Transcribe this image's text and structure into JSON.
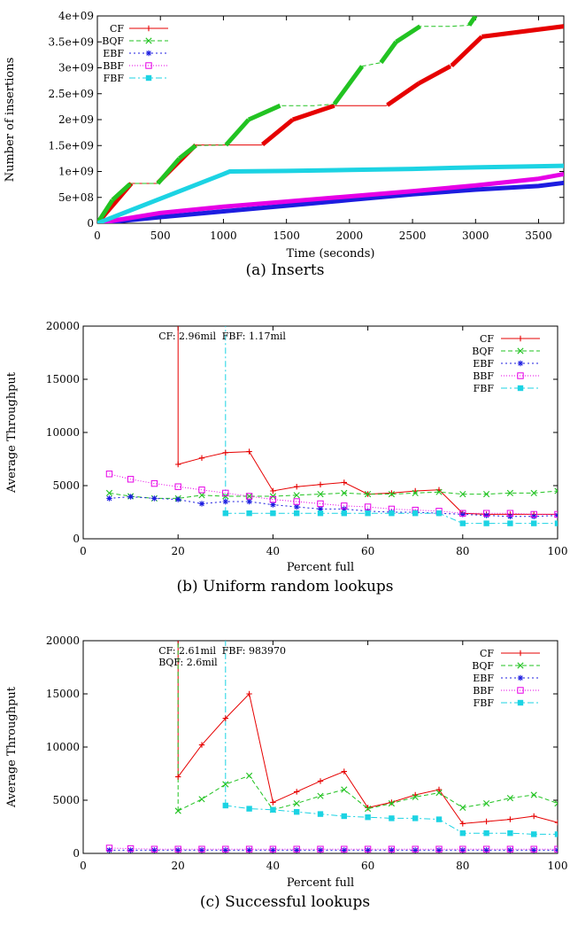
{
  "colors": {
    "CF": "#e60000",
    "BQF": "#22c322",
    "EBF": "#1d1de0",
    "BBF": "#e600e6",
    "FBF": "#1cd3e3"
  },
  "chart_data": [
    {
      "caption": "(a) Inserts",
      "type": "line",
      "xlabel": "Time (seconds)",
      "ylabel": "Number of insertions",
      "xlim": [
        0,
        3700
      ],
      "ylim": [
        0,
        4000000000
      ],
      "xticks": [
        0,
        500,
        1000,
        1500,
        2000,
        2500,
        3000,
        3500
      ],
      "yticks": [
        0,
        500000000,
        1000000000,
        1500000000,
        2000000000,
        2500000000,
        3000000000,
        3500000000,
        4000000000
      ],
      "ytick_labels": [
        "0",
        "5e+08",
        "1e+09",
        "1.5e+09",
        "2e+09",
        "2.5e+09",
        "3e+09",
        "3.5e+09",
        "4e+09"
      ],
      "legend_position": "top-left",
      "series": [
        {
          "name": "CF",
          "x": [
            0,
            270,
            470,
            480,
            780,
            1040,
            1300,
            1310,
            1550,
            1880,
            2290,
            2300,
            2550,
            2800,
            2810,
            3050,
            3700,
            3710
          ],
          "y": [
            0,
            770000000,
            770000000,
            780000000,
            1510000000,
            1510000000,
            1510000000,
            1520000000,
            2000000000,
            2270000000,
            2270000000,
            2280000000,
            2700000000,
            3030000000,
            3040000000,
            3600000000,
            3800000000,
            3900000000
          ]
        },
        {
          "name": "BQF",
          "x": [
            0,
            120,
            260,
            270,
            480,
            650,
            780,
            1020,
            1200,
            1450,
            1720,
            1880,
            2100,
            2250,
            2370,
            2560,
            2800,
            2950,
            3000
          ],
          "y": [
            0,
            450000000,
            760000000,
            770000000,
            770000000,
            1250000000,
            1500000000,
            1510000000,
            2000000000,
            2270000000,
            2270000000,
            2300000000,
            3030000000,
            3100000000,
            3500000000,
            3800000000,
            3800000000,
            3820000000,
            4000000000
          ]
        },
        {
          "name": "EBF",
          "x": [
            0,
            500,
            1000,
            1500,
            2000,
            2500,
            3000,
            3500,
            3700
          ],
          "y": [
            0,
            120000000,
            230000000,
            340000000,
            450000000,
            560000000,
            650000000,
            720000000,
            780000000
          ]
        },
        {
          "name": "BBF",
          "x": [
            0,
            500,
            1000,
            1500,
            2000,
            2500,
            3000,
            3500,
            3700
          ],
          "y": [
            0,
            200000000,
            320000000,
            420000000,
            520000000,
            620000000,
            730000000,
            860000000,
            950000000
          ]
        },
        {
          "name": "FBF",
          "x": [
            0,
            1000,
            1050,
            1500,
            2000,
            2500,
            3000,
            3500,
            3700
          ],
          "y": [
            0,
            950000000,
            1000000000,
            1010000000,
            1030000000,
            1050000000,
            1080000000,
            1100000000,
            1110000000
          ]
        }
      ]
    },
    {
      "caption": "(b) Uniform random lookups",
      "type": "line",
      "xlabel": "Percent full",
      "ylabel": "Average Throughput",
      "xlim": [
        0,
        100
      ],
      "ylim": [
        0,
        20000
      ],
      "xticks": [
        0,
        20,
        40,
        60,
        80,
        100
      ],
      "yticks": [
        0,
        5000,
        10000,
        15000,
        20000
      ],
      "ytick_labels": [
        "0",
        "5000",
        "10000",
        "15000",
        "20000"
      ],
      "legend_position": "top-right",
      "annotations": [
        {
          "text": "CF: 2.96mil",
          "x": 20,
          "series": "CF"
        },
        {
          "text": "FBF: 1.17mil",
          "x": 30,
          "series": "FBF"
        }
      ],
      "spikes": [
        {
          "series": "CF",
          "x": 20
        },
        {
          "series": "FBF",
          "x": 30
        }
      ],
      "series": [
        {
          "name": "CF",
          "x": [
            20,
            25,
            30,
            35,
            40,
            45,
            50,
            55,
            60,
            65,
            70,
            75,
            80,
            85,
            90,
            95,
            100
          ],
          "y": [
            7000,
            7600,
            8100,
            8200,
            4500,
            4900,
            5100,
            5300,
            4200,
            4300,
            4500,
            4600,
            2400,
            2300,
            2300,
            2300,
            2300
          ]
        },
        {
          "name": "BQF",
          "x": [
            5.5,
            10,
            15,
            20,
            25,
            30,
            35,
            40,
            45,
            50,
            55,
            60,
            65,
            70,
            75,
            80,
            85,
            90,
            95,
            100
          ],
          "y": [
            4300,
            4000,
            3800,
            3800,
            4100,
            4000,
            4000,
            4000,
            4100,
            4200,
            4300,
            4200,
            4200,
            4300,
            4400,
            4200,
            4200,
            4300,
            4300,
            4500
          ]
        },
        {
          "name": "EBF",
          "x": [
            5.5,
            10,
            15,
            20,
            25,
            30,
            35,
            40,
            45,
            50,
            55,
            60,
            65,
            70,
            75,
            80,
            85,
            90,
            95,
            100
          ],
          "y": [
            3800,
            3950,
            3800,
            3700,
            3300,
            3500,
            3500,
            3200,
            3000,
            2800,
            2800,
            2600,
            2500,
            2500,
            2400,
            2300,
            2200,
            2100,
            2100,
            2200
          ]
        },
        {
          "name": "BBF",
          "x": [
            5.5,
            10,
            15,
            20,
            25,
            30,
            35,
            40,
            45,
            50,
            55,
            60,
            65,
            70,
            75,
            80,
            85,
            90,
            95,
            100
          ],
          "y": [
            6100,
            5600,
            5200,
            4900,
            4600,
            4300,
            4000,
            3700,
            3500,
            3300,
            3100,
            3000,
            2800,
            2700,
            2600,
            2400,
            2400,
            2400,
            2300,
            2300
          ]
        },
        {
          "name": "FBF",
          "x": [
            30,
            35,
            40,
            45,
            50,
            55,
            60,
            65,
            70,
            75,
            80,
            85,
            90,
            95,
            100
          ],
          "y": [
            2400,
            2400,
            2400,
            2400,
            2400,
            2400,
            2400,
            2400,
            2400,
            2400,
            1450,
            1450,
            1450,
            1450,
            1450
          ]
        }
      ]
    },
    {
      "caption": "(c) Successful lookups",
      "type": "line",
      "xlabel": "Percent full",
      "ylabel": "Average Throughput",
      "xlim": [
        0,
        100
      ],
      "ylim": [
        0,
        20000
      ],
      "xticks": [
        0,
        20,
        40,
        60,
        80,
        100
      ],
      "yticks": [
        0,
        5000,
        10000,
        15000,
        20000
      ],
      "ytick_labels": [
        "0",
        "5000",
        "10000",
        "15000",
        "20000"
      ],
      "legend_position": "top-right",
      "annotations": [
        {
          "text": "CF: 2.61mil",
          "x": 20,
          "series": "CF"
        },
        {
          "text": "BQF: 2.6mil",
          "x": 20,
          "series": "BQF"
        },
        {
          "text": "FBF: 983970",
          "x": 30,
          "series": "FBF"
        }
      ],
      "spikes": [
        {
          "series": "CF",
          "x": 20
        },
        {
          "series": "BQF",
          "x": 20
        },
        {
          "series": "FBF",
          "x": 30
        }
      ],
      "series": [
        {
          "name": "CF",
          "x": [
            20,
            25,
            30,
            35,
            40,
            45,
            50,
            55,
            60,
            65,
            70,
            75,
            80,
            85,
            90,
            95,
            100
          ],
          "y": [
            7200,
            10200,
            12700,
            15000,
            4800,
            5800,
            6800,
            7700,
            4300,
            4800,
            5500,
            6000,
            2800,
            3000,
            3200,
            3500,
            2900
          ]
        },
        {
          "name": "BQF",
          "x": [
            20,
            25,
            30,
            35,
            40,
            45,
            50,
            55,
            60,
            65,
            70,
            75,
            80,
            85,
            90,
            95,
            100
          ],
          "y": [
            4000,
            5100,
            6500,
            7300,
            4100,
            4700,
            5400,
            6000,
            4200,
            4700,
            5300,
            5700,
            4300,
            4700,
            5200,
            5500,
            4700
          ]
        },
        {
          "name": "EBF",
          "x": [
            5.5,
            10,
            15,
            20,
            25,
            30,
            35,
            40,
            45,
            50,
            55,
            60,
            65,
            70,
            75,
            80,
            85,
            90,
            95,
            100
          ],
          "y": [
            300,
            300,
            300,
            300,
            300,
            300,
            300,
            300,
            300,
            300,
            300,
            300,
            300,
            300,
            300,
            300,
            300,
            300,
            300,
            300
          ]
        },
        {
          "name": "BBF",
          "x": [
            5.5,
            10,
            15,
            20,
            25,
            30,
            35,
            40,
            45,
            50,
            55,
            60,
            65,
            70,
            75,
            80,
            85,
            90,
            95,
            100
          ],
          "y": [
            500,
            450,
            400,
            400,
            400,
            400,
            400,
            400,
            400,
            400,
            400,
            400,
            400,
            400,
            400,
            400,
            400,
            400,
            400,
            400
          ]
        },
        {
          "name": "FBF",
          "x": [
            30,
            35,
            40,
            45,
            50,
            55,
            60,
            65,
            70,
            75,
            80,
            85,
            90,
            95,
            100
          ],
          "y": [
            4500,
            4200,
            4100,
            3900,
            3700,
            3500,
            3400,
            3300,
            3300,
            3200,
            1900,
            1900,
            1900,
            1800,
            1800
          ]
        }
      ]
    }
  ]
}
